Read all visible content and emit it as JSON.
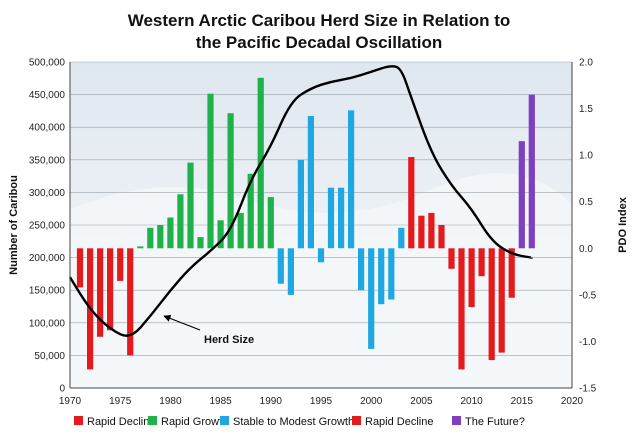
{
  "chart_data": {
    "type": "bar",
    "title_line1": "Western Arctic Caribou Herd Size in Relation to",
    "title_line2": "the Pacific Decadal Oscillation",
    "ylabel_left": "Number of Caribou",
    "ylabel_right": "PDO Index",
    "xlim": [
      1970,
      2020
    ],
    "x_ticks": [
      "1970",
      "1975",
      "1980",
      "1985",
      "1990",
      "1995",
      "2000",
      "2005",
      "2010",
      "2015",
      "2020"
    ],
    "ylim_left": [
      0,
      500000
    ],
    "y_ticks_left": [
      "0",
      "50,000",
      "100,000",
      "150,000",
      "200,000",
      "250,000",
      "300,000",
      "350,000",
      "400,000",
      "450,000",
      "500,000"
    ],
    "ylim_right": [
      -1.5,
      2.0
    ],
    "y_ticks_right": [
      "2.0",
      "1.5",
      "1.0",
      "0.5",
      "0.0",
      "-0.5",
      "-1.0",
      "-1.5"
    ],
    "colors": {
      "rapid_decline": "#e41a1c",
      "rapid_growth": "#1fb24a",
      "stable": "#1ea7e0",
      "future": "#7f3fbf",
      "herd_line": "#000000"
    },
    "pdo_series": [
      {
        "name": "Rapid Decline",
        "color_key": "rapid_decline",
        "years": [
          1971,
          1972,
          1973,
          1974,
          1975,
          1976
        ],
        "values": [
          -0.42,
          -1.3,
          -0.95,
          -0.88,
          -0.35,
          -1.15
        ]
      },
      {
        "name": "Rapid Growth",
        "color_key": "rapid_growth",
        "years": [
          1977,
          1978,
          1979,
          1980,
          1981,
          1982,
          1983,
          1984,
          1985,
          1986,
          1987,
          1988,
          1989,
          1990
        ],
        "values": [
          0.02,
          0.22,
          0.25,
          0.33,
          0.58,
          0.92,
          0.12,
          1.66,
          0.3,
          1.45,
          0.38,
          0.8,
          1.83,
          0.55
        ]
      },
      {
        "name": "Stable to Modest Growth",
        "color_key": "stable",
        "years": [
          1991,
          1992,
          1993,
          1994,
          1995,
          1996,
          1997,
          1998,
          1999,
          2000,
          2001,
          2002,
          2003
        ],
        "values": [
          -0.38,
          -0.5,
          0.95,
          1.42,
          -0.15,
          0.65,
          0.65,
          1.48,
          -0.45,
          -1.08,
          -0.6,
          -0.55,
          0.22
        ]
      },
      {
        "name": "Rapid Decline",
        "color_key": "rapid_decline",
        "years": [
          2004,
          2005,
          2006,
          2007,
          2008,
          2009,
          2010,
          2011,
          2012,
          2013,
          2014
        ],
        "values": [
          0.98,
          0.35,
          0.38,
          0.25,
          -0.22,
          -1.3,
          -0.63,
          -0.3,
          -1.2,
          -1.12,
          -0.53
        ]
      },
      {
        "name": "The Future?",
        "color_key": "future",
        "years": [
          2015,
          2016
        ],
        "values": [
          1.15,
          1.65
        ]
      }
    ],
    "herd_size": {
      "name": "Herd Size",
      "x": [
        1970,
        1972,
        1974,
        1976,
        1978,
        1980,
        1982,
        1984,
        1986,
        1988,
        1990,
        1992,
        1994,
        1996,
        1998,
        2000,
        2002,
        2003,
        2004,
        2006,
        2008,
        2010,
        2012,
        2014,
        2016
      ],
      "y": [
        170000,
        120000,
        90000,
        75000,
        110000,
        150000,
        185000,
        210000,
        240000,
        320000,
        370000,
        440000,
        460000,
        470000,
        475000,
        485000,
        495000,
        490000,
        445000,
        360000,
        310000,
        275000,
        225000,
        205000,
        200000
      ]
    },
    "legend": [
      {
        "label": "Rapid Decline",
        "color_key": "rapid_decline"
      },
      {
        "label": "Rapid Growth",
        "color_key": "rapid_growth"
      },
      {
        "label": "Stable to Modest Growth",
        "color_key": "stable"
      },
      {
        "label": "Rapid Decline",
        "color_key": "rapid_decline"
      },
      {
        "label": "The Future?",
        "color_key": "future"
      }
    ],
    "annotation": "Herd Size",
    "grid": "horizontal",
    "legend_position": "bottom"
  }
}
